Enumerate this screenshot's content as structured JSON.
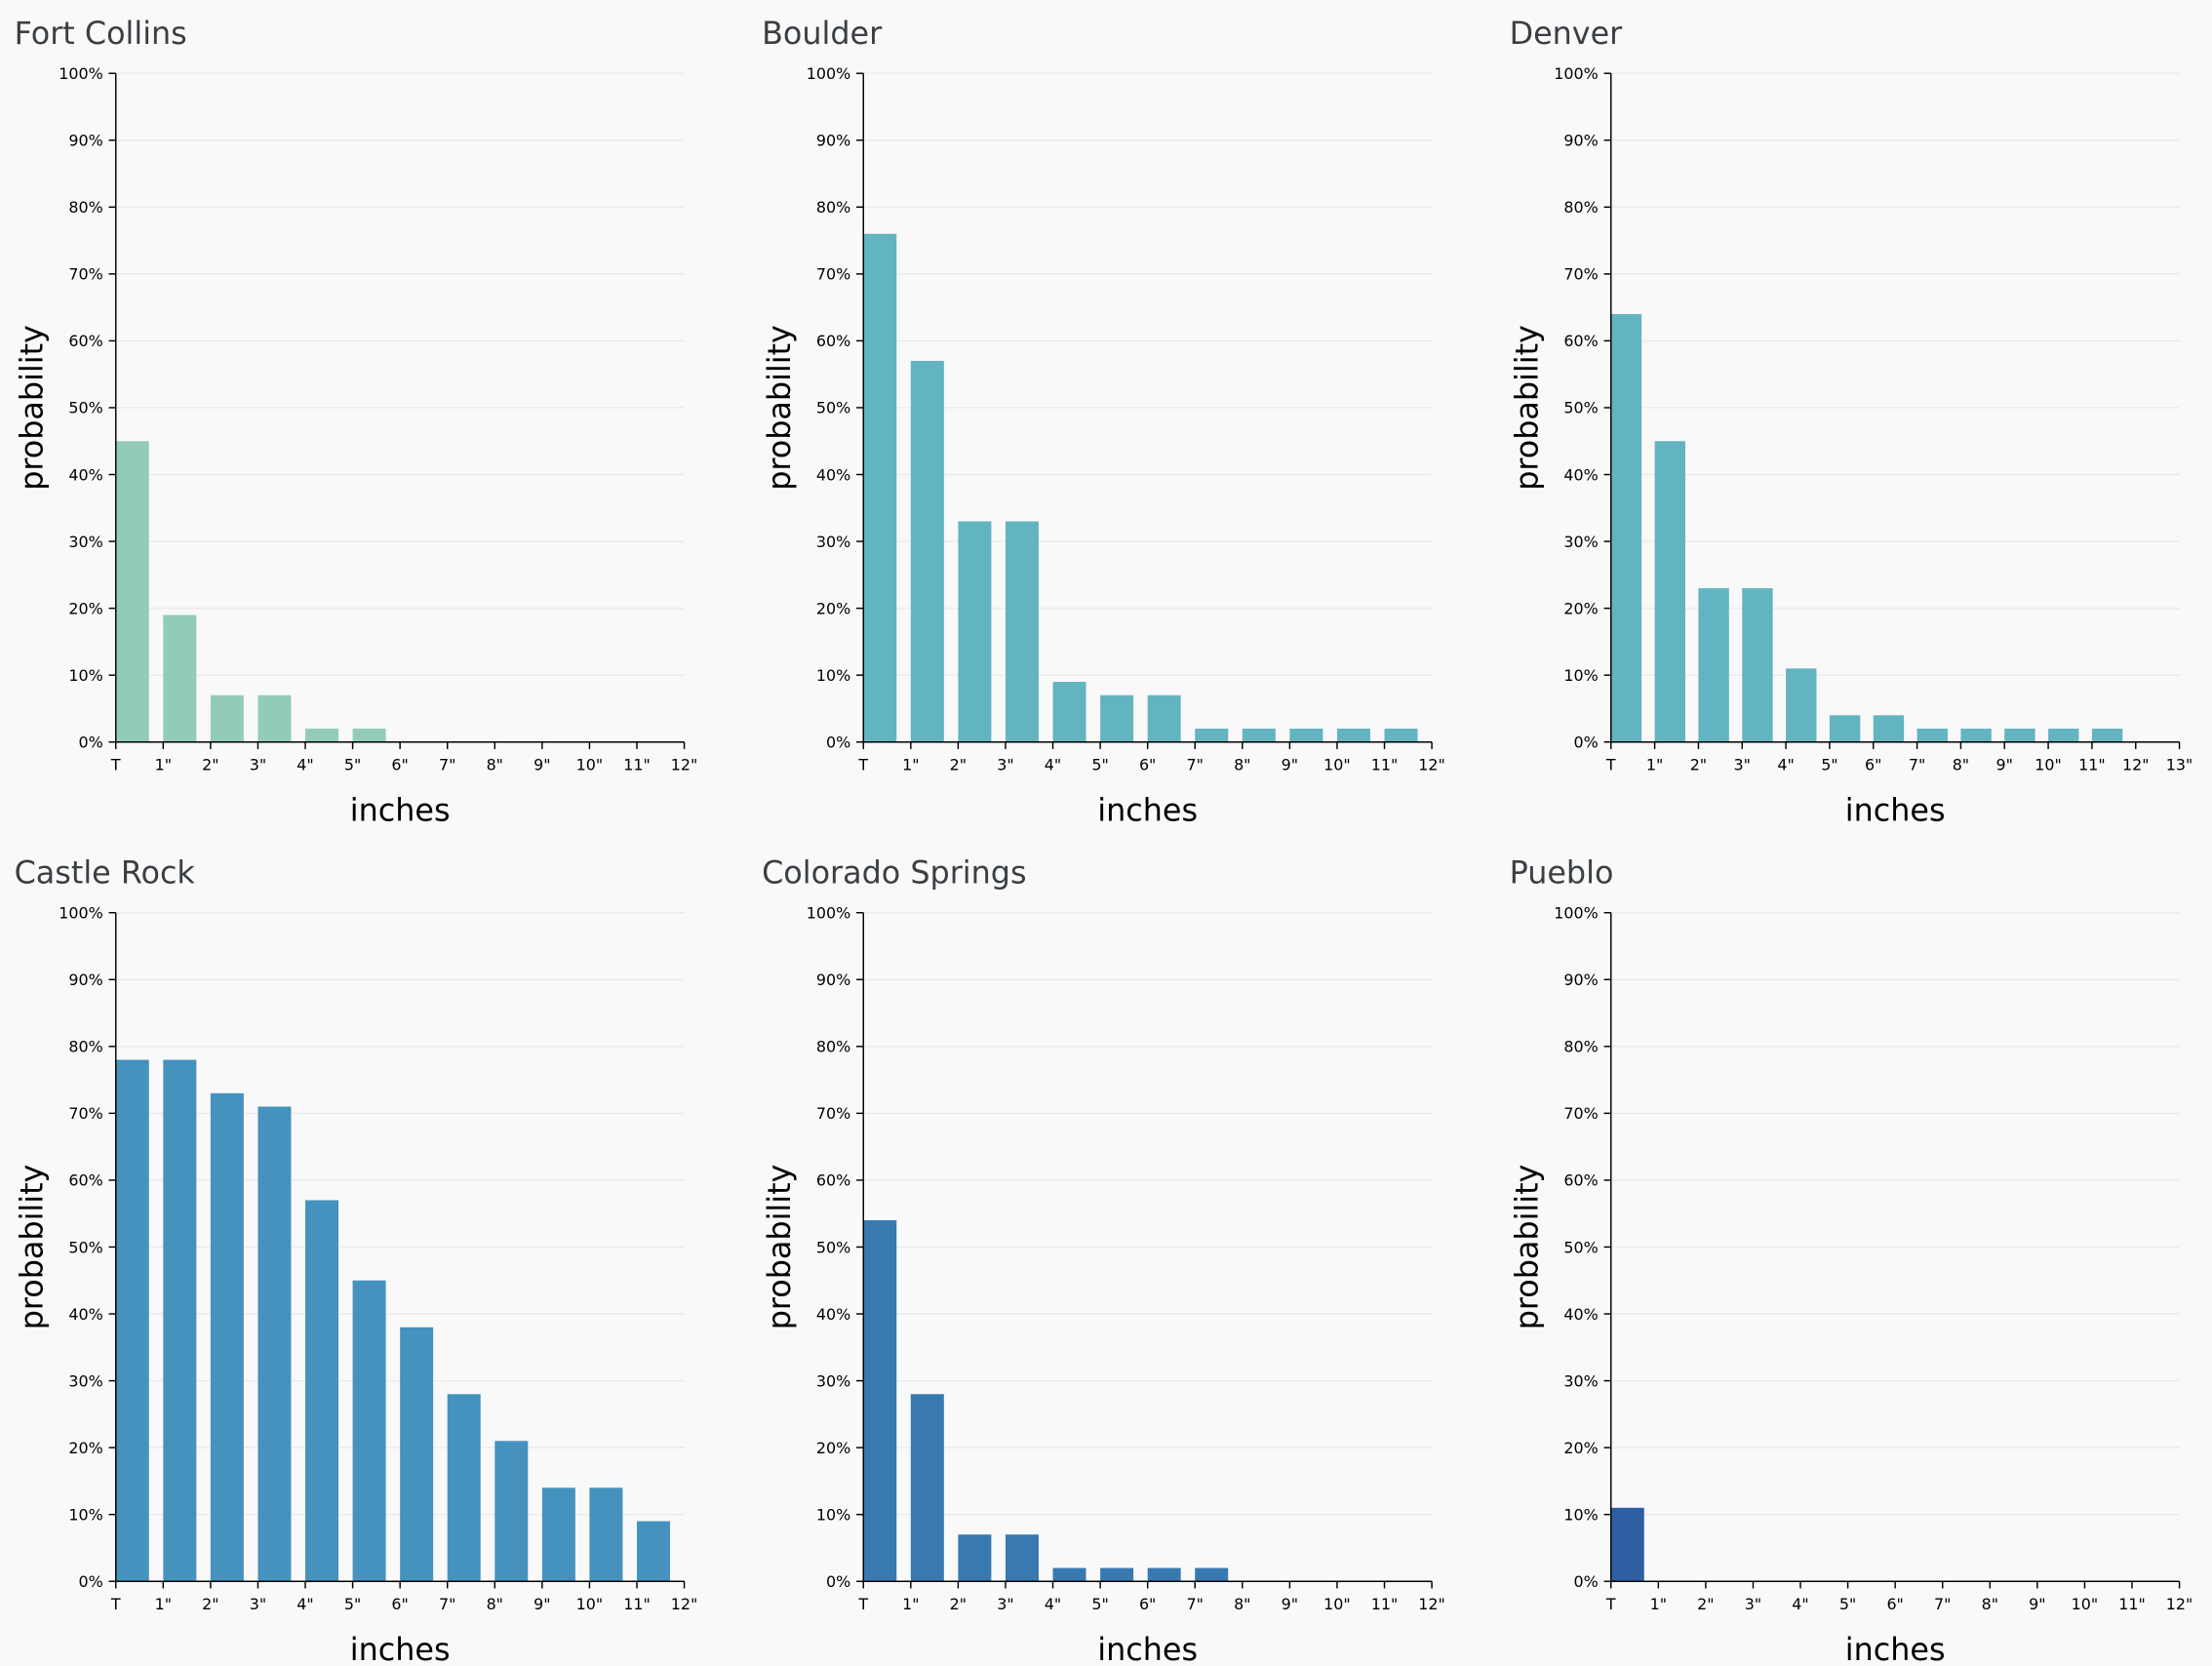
{
  "chart_data": [
    {
      "type": "histogram",
      "title": "Fort Collins",
      "xlabel": "inches",
      "ylabel": "probability",
      "color": "#93cbb9",
      "bins": [
        "T",
        "1\"",
        "2\"",
        "3\"",
        "4\"",
        "5\"",
        "6\"",
        "7\"",
        "8\"",
        "9\"",
        "10\"",
        "11\"",
        "12\""
      ],
      "values": [
        45,
        19,
        7,
        7,
        2,
        2,
        0,
        0,
        0,
        0,
        0,
        0
      ],
      "ylim": [
        0,
        100
      ],
      "grid": true,
      "yticks": [
        {
          "value": 0,
          "label": "0%"
        },
        {
          "value": 10,
          "label": "10%"
        },
        {
          "value": 20,
          "label": "20%"
        },
        {
          "value": 30,
          "label": "30%"
        },
        {
          "value": 40,
          "label": "40%"
        },
        {
          "value": 50,
          "label": "50%"
        },
        {
          "value": 60,
          "label": "60%"
        },
        {
          "value": 70,
          "label": "70%"
        },
        {
          "value": 80,
          "label": "80%"
        },
        {
          "value": 90,
          "label": "90%"
        },
        {
          "value": 100,
          "label": "100%"
        }
      ]
    },
    {
      "type": "histogram",
      "title": "Boulder",
      "xlabel": "inches",
      "ylabel": "probability",
      "color": "#63b4c1",
      "bins": [
        "T",
        "1\"",
        "2\"",
        "3\"",
        "4\"",
        "5\"",
        "6\"",
        "7\"",
        "8\"",
        "9\"",
        "10\"",
        "11\"",
        "12\""
      ],
      "values": [
        76,
        57,
        33,
        33,
        9,
        7,
        7,
        2,
        2,
        2,
        2,
        2
      ],
      "ylim": [
        0,
        100
      ],
      "grid": true,
      "yticks": [
        {
          "value": 0,
          "label": "0%"
        },
        {
          "value": 10,
          "label": "10%"
        },
        {
          "value": 20,
          "label": "20%"
        },
        {
          "value": 30,
          "label": "30%"
        },
        {
          "value": 40,
          "label": "40%"
        },
        {
          "value": 50,
          "label": "50%"
        },
        {
          "value": 60,
          "label": "60%"
        },
        {
          "value": 70,
          "label": "70%"
        },
        {
          "value": 80,
          "label": "80%"
        },
        {
          "value": 90,
          "label": "90%"
        },
        {
          "value": 100,
          "label": "100%"
        }
      ]
    },
    {
      "type": "histogram",
      "title": "Denver",
      "xlabel": "inches",
      "ylabel": "probability",
      "color": "#63b4c1",
      "bins": [
        "T",
        "1\"",
        "2\"",
        "3\"",
        "4\"",
        "5\"",
        "6\"",
        "7\"",
        "8\"",
        "9\"",
        "10\"",
        "11\"",
        "12\"",
        "13\""
      ],
      "values": [
        64,
        45,
        23,
        23,
        11,
        4,
        4,
        2,
        2,
        2,
        2,
        2,
        0
      ],
      "ylim": [
        0,
        100
      ],
      "grid": true,
      "yticks": [
        {
          "value": 0,
          "label": "0%"
        },
        {
          "value": 10,
          "label": "10%"
        },
        {
          "value": 20,
          "label": "20%"
        },
        {
          "value": 30,
          "label": "30%"
        },
        {
          "value": 40,
          "label": "40%"
        },
        {
          "value": 50,
          "label": "50%"
        },
        {
          "value": 60,
          "label": "60%"
        },
        {
          "value": 70,
          "label": "70%"
        },
        {
          "value": 80,
          "label": "80%"
        },
        {
          "value": 90,
          "label": "90%"
        },
        {
          "value": 100,
          "label": "100%"
        }
      ]
    },
    {
      "type": "histogram",
      "title": "Castle Rock",
      "xlabel": "inches",
      "ylabel": "probability",
      "color": "#4592be",
      "bins": [
        "T",
        "1\"",
        "2\"",
        "3\"",
        "4\"",
        "5\"",
        "6\"",
        "7\"",
        "8\"",
        "9\"",
        "10\"",
        "11\"",
        "12\""
      ],
      "values": [
        78,
        78,
        73,
        71,
        57,
        45,
        38,
        28,
        21,
        14,
        14,
        9
      ],
      "ylim": [
        0,
        100
      ],
      "grid": true,
      "yticks": [
        {
          "value": 0,
          "label": "0%"
        },
        {
          "value": 10,
          "label": "10%"
        },
        {
          "value": 20,
          "label": "20%"
        },
        {
          "value": 30,
          "label": "30%"
        },
        {
          "value": 40,
          "label": "40%"
        },
        {
          "value": 50,
          "label": "50%"
        },
        {
          "value": 60,
          "label": "60%"
        },
        {
          "value": 70,
          "label": "70%"
        },
        {
          "value": 80,
          "label": "80%"
        },
        {
          "value": 90,
          "label": "90%"
        },
        {
          "value": 100,
          "label": "100%"
        }
      ]
    },
    {
      "type": "histogram",
      "title": "Colorado Springs",
      "xlabel": "inches",
      "ylabel": "probability",
      "color": "#3879b0",
      "bins": [
        "T",
        "1\"",
        "2\"",
        "3\"",
        "4\"",
        "5\"",
        "6\"",
        "7\"",
        "8\"",
        "9\"",
        "10\"",
        "11\"",
        "12\""
      ],
      "values": [
        54,
        28,
        7,
        7,
        2,
        2,
        2,
        2,
        0,
        0,
        0,
        0
      ],
      "ylim": [
        0,
        100
      ],
      "grid": true,
      "yticks": [
        {
          "value": 0,
          "label": "0%"
        },
        {
          "value": 10,
          "label": "10%"
        },
        {
          "value": 20,
          "label": "20%"
        },
        {
          "value": 30,
          "label": "30%"
        },
        {
          "value": 40,
          "label": "40%"
        },
        {
          "value": 50,
          "label": "50%"
        },
        {
          "value": 60,
          "label": "60%"
        },
        {
          "value": 70,
          "label": "70%"
        },
        {
          "value": 80,
          "label": "80%"
        },
        {
          "value": 90,
          "label": "90%"
        },
        {
          "value": 100,
          "label": "100%"
        }
      ]
    },
    {
      "type": "histogram",
      "title": "Pueblo",
      "xlabel": "inches",
      "ylabel": "probability",
      "color": "#2f5fa3",
      "bins": [
        "T",
        "1\"",
        "2\"",
        "3\"",
        "4\"",
        "5\"",
        "6\"",
        "7\"",
        "8\"",
        "9\"",
        "10\"",
        "11\"",
        "12\""
      ],
      "values": [
        11,
        0,
        0,
        0,
        0,
        0,
        0,
        0,
        0,
        0,
        0,
        0
      ],
      "ylim": [
        0,
        100
      ],
      "grid": true,
      "yticks": [
        {
          "value": 0,
          "label": "0%"
        },
        {
          "value": 10,
          "label": "10%"
        },
        {
          "value": 20,
          "label": "20%"
        },
        {
          "value": 30,
          "label": "30%"
        },
        {
          "value": 40,
          "label": "40%"
        },
        {
          "value": 50,
          "label": "50%"
        },
        {
          "value": 60,
          "label": "60%"
        },
        {
          "value": 70,
          "label": "70%"
        },
        {
          "value": 80,
          "label": "80%"
        },
        {
          "value": 90,
          "label": "90%"
        },
        {
          "value": 100,
          "label": "100%"
        }
      ]
    }
  ]
}
